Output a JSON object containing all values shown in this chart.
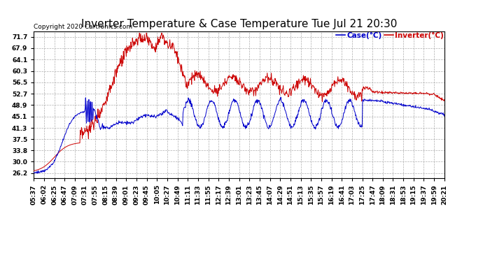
{
  "title": "Inverter Temperature & Case Temperature Tue Jul 21 20:30",
  "copyright": "Copyright 2020 Cartronics.com",
  "legend_case": "Case(°C)",
  "legend_inverter": "Inverter(°C)",
  "yticks": [
    26.2,
    30.0,
    33.8,
    37.5,
    41.3,
    45.1,
    48.9,
    52.7,
    56.5,
    60.3,
    64.1,
    67.9,
    71.7
  ],
  "ylim": [
    24.5,
    73.5
  ],
  "case_color": "#0000cc",
  "inverter_color": "#cc0000",
  "background_color": "#ffffff",
  "grid_color": "#999999",
  "title_fontsize": 11,
  "tick_fontsize": 6.5,
  "copyright_fontsize": 6.5,
  "legend_fontsize": 7.5,
  "xlabel_rotation": 90,
  "xtick_labels": [
    "05:37",
    "06:02",
    "06:25",
    "06:47",
    "07:09",
    "07:31",
    "07:55",
    "08:15",
    "08:39",
    "09:01",
    "09:23",
    "09:45",
    "10:05",
    "10:27",
    "10:49",
    "11:11",
    "11:33",
    "11:55",
    "12:17",
    "12:39",
    "13:01",
    "13:23",
    "13:45",
    "14:07",
    "14:29",
    "14:51",
    "15:13",
    "15:35",
    "15:57",
    "16:19",
    "16:41",
    "17:03",
    "17:25",
    "17:47",
    "18:09",
    "18:31",
    "18:53",
    "19:15",
    "19:37",
    "19:59",
    "20:21"
  ]
}
